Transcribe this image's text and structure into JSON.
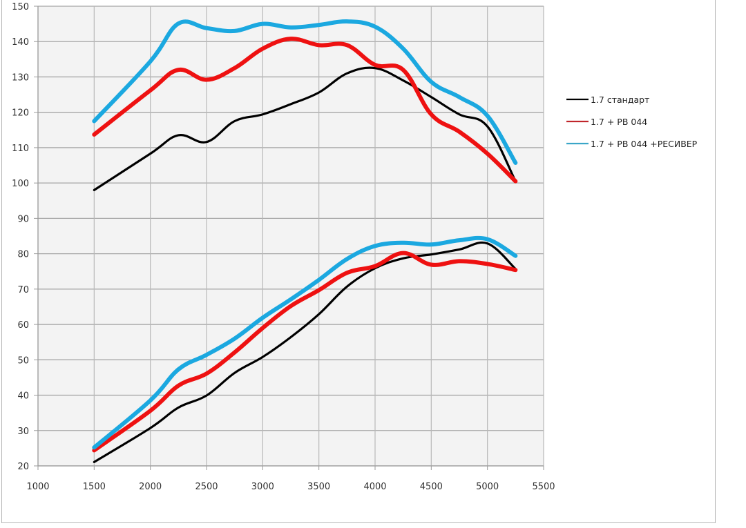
{
  "chart_data": {
    "type": "line",
    "title": "",
    "xlabel": "",
    "ylabel": "",
    "xlim": [
      1000,
      5500
    ],
    "ylim": [
      20,
      150
    ],
    "x_ticks": [
      1000,
      1500,
      2000,
      2500,
      3000,
      3500,
      4000,
      4500,
      5000,
      5500
    ],
    "y_ticks": [
      20,
      30,
      40,
      50,
      60,
      70,
      80,
      90,
      100,
      110,
      120,
      130,
      140,
      150
    ],
    "grid": true,
    "plot_background": "#f3f3f3",
    "legend_position": "right",
    "x": [
      1500,
      2000,
      2250,
      2500,
      2750,
      3000,
      3250,
      3500,
      3750,
      4000,
      4250,
      4500,
      4750,
      5000,
      5250
    ],
    "series": [
      {
        "name": "1.7 стандарт",
        "color": "#000000",
        "group": "upper",
        "values": [
          98,
          108.3,
          113.5,
          111.6,
          117.5,
          119.4,
          122.3,
          125.6,
          131,
          132.5,
          129,
          124.3,
          119.4,
          116,
          100.5
        ]
      },
      {
        "name": "1.7 + РВ 044",
        "color": "#ee1111",
        "group": "upper",
        "values": [
          113.7,
          126.2,
          132,
          129.2,
          132.5,
          138,
          140.8,
          139,
          139,
          133.4,
          132,
          119.4,
          114.5,
          108.3,
          100.5
        ]
      },
      {
        "name": "1.7 + РВ 044 +РЕСИВЕР",
        "color": "#1ba8e0",
        "group": "upper",
        "values": [
          117.5,
          134.4,
          145.1,
          143.8,
          143,
          145,
          144,
          144.7,
          145.7,
          144.2,
          138,
          128.6,
          124.3,
          119,
          105.7
        ]
      },
      {
        "name": "1.7 стандарт",
        "color": "#000000",
        "group": "lower",
        "values": [
          21.1,
          30.7,
          36.5,
          39.9,
          46.3,
          50.8,
          56.4,
          62.9,
          70.7,
          75.9,
          78.7,
          79.8,
          81.2,
          82.9,
          75.7
        ]
      },
      {
        "name": "1.7 + РВ 044",
        "color": "#ee1111",
        "group": "lower",
        "values": [
          24.4,
          35.6,
          42.7,
          46.1,
          52.1,
          59,
          65.2,
          69.7,
          74.6,
          76.5,
          80.2,
          76.9,
          77.9,
          77.1,
          75.4
        ]
      },
      {
        "name": "1.7 + РВ 044 +РЕСИВЕР",
        "color": "#1ba8e0",
        "group": "lower",
        "values": [
          25.2,
          38.5,
          47.3,
          51.4,
          56,
          61.9,
          67.1,
          72.6,
          78.5,
          82.2,
          83.1,
          82.6,
          83.8,
          84.1,
          79.4
        ]
      }
    ],
    "legend": [
      {
        "label": "1.7 стандарт",
        "color": "#000000"
      },
      {
        "label": "1.7 + РВ 044",
        "color": "#c0262b"
      },
      {
        "label": "1.7 + РВ 044 +РЕСИВЕР",
        "color": "#3aa6c8"
      }
    ]
  }
}
